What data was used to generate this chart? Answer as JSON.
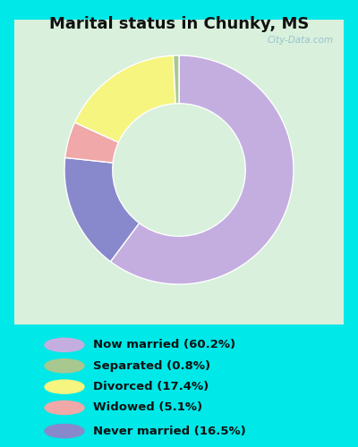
{
  "title": "Marital status in Chunky, MS",
  "title_fontsize": 13,
  "background_outer": "#00e8e8",
  "chart_area_bg": "#d8f0dc",
  "categories": [
    "Now married",
    "Never married",
    "Widowed",
    "Divorced",
    "Separated"
  ],
  "values": [
    60.2,
    16.5,
    5.1,
    17.4,
    0.8
  ],
  "colors": [
    "#c4aee0",
    "#8888cc",
    "#f0a8a8",
    "#f5f580",
    "#a8c890"
  ],
  "legend_labels": [
    "Now married (60.2%)",
    "Separated (0.8%)",
    "Divorced (17.4%)",
    "Widowed (5.1%)",
    "Never married (16.5%)"
  ],
  "legend_colors": [
    "#c4aee0",
    "#a8c890",
    "#f5f580",
    "#f0a8a8",
    "#8888cc"
  ],
  "donut_width": 0.42,
  "startangle": 90,
  "watermark": "City-Data.com"
}
